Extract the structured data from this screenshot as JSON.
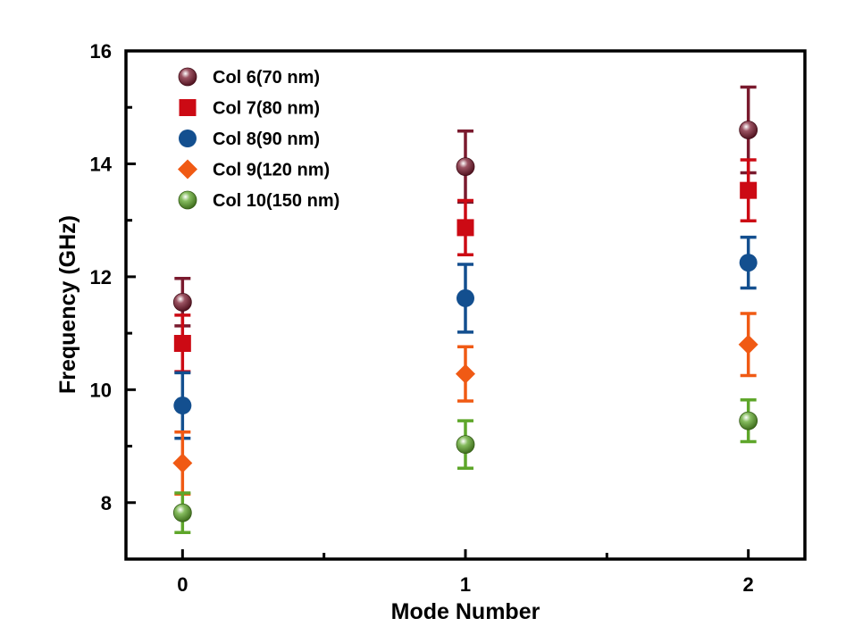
{
  "chart_data": {
    "type": "scatter",
    "xlabel": "Mode Number",
    "ylabel": "Frequency (GHz)",
    "xlim": [
      -0.2,
      2.2
    ],
    "ylim": [
      7,
      16
    ],
    "xticks": [
      0,
      1,
      2
    ],
    "xticks_minor": [
      0.5,
      1.5
    ],
    "yticks": [
      8,
      10,
      12,
      14,
      16
    ],
    "yticks_minor": [
      9,
      11,
      13,
      15
    ],
    "grid": false,
    "legend_position": "top-left",
    "series": [
      {
        "name": "Col 6(70 nm)",
        "marker": "sphere",
        "color": "#7a1a2e",
        "x": [
          0,
          1,
          2
        ],
        "y": [
          11.55,
          13.95,
          14.6
        ],
        "err": [
          0.42,
          0.63,
          0.76
        ]
      },
      {
        "name": "Col 7(80 nm)",
        "marker": "square",
        "color": "#cc0a14",
        "x": [
          0,
          1,
          2
        ],
        "y": [
          10.82,
          12.87,
          13.53
        ],
        "err": [
          0.5,
          0.48,
          0.54
        ]
      },
      {
        "name": "Col 8(90 nm)",
        "marker": "circle",
        "color": "#134f8f",
        "x": [
          0,
          1,
          2
        ],
        "y": [
          9.72,
          11.62,
          12.25
        ],
        "err": [
          0.58,
          0.6,
          0.45
        ]
      },
      {
        "name": "Col 9(120 nm)",
        "marker": "diamond",
        "color": "#f05a14",
        "x": [
          0,
          1,
          2
        ],
        "y": [
          8.7,
          10.28,
          10.8
        ],
        "err": [
          0.55,
          0.48,
          0.55
        ]
      },
      {
        "name": "Col 10(150 nm)",
        "marker": "sphere",
        "color": "#5ea62a",
        "x": [
          0,
          1,
          2
        ],
        "y": [
          7.82,
          9.03,
          9.45
        ],
        "err": [
          0.35,
          0.42,
          0.37
        ]
      }
    ]
  }
}
